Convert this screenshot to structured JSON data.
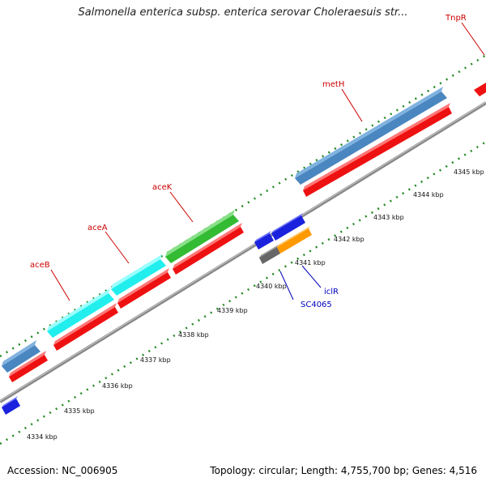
{
  "title": "Salmonella enterica subsp. enterica serovar Choleraesuis str...",
  "footer": {
    "accession": "Accession: NC_006905",
    "topology": "Topology: circular; Length: 4,755,700 bp; Genes: 4,516"
  },
  "colors": {
    "red": "#ee1111",
    "steelblue": "#4a86c0",
    "cyan": "#22eeee",
    "green": "#33bb33",
    "blue": "#1b22dd",
    "orange": "#ff9900",
    "gray": "#666666",
    "dots": "#228822",
    "backbone": "#888888",
    "label_red": "#cc0000",
    "label_blue": "#0000bb"
  },
  "gene_labels": {
    "aceB": "aceB",
    "aceA": "aceA",
    "aceK": "aceK",
    "metH": "metH",
    "TnpR": "TnpR",
    "iclR": "iclR",
    "SC4065": "SC4065"
  },
  "ticks": [
    "4334 kbp",
    "4335 kbp",
    "4336 kbp",
    "4337 kbp",
    "4338 kbp",
    "4339 kbp",
    "4340 kbp",
    "4341 kbp",
    "4342 kbp",
    "4343 kbp",
    "4344 kbp",
    "4345 kbp"
  ]
}
